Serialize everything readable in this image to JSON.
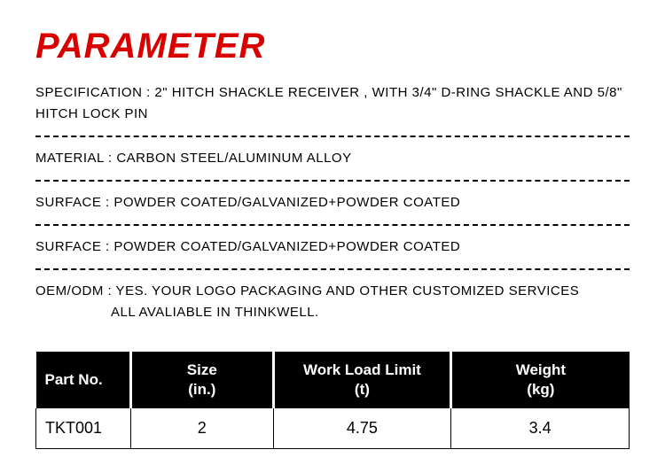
{
  "title": {
    "text": "PARAMETER",
    "color": "#d90000",
    "fontsize": 40,
    "fontweight": 900,
    "fontstyle": "italic"
  },
  "specs": {
    "items": [
      {
        "text": "SPECIFICATION :  2\"  HITCH SHACKLE RECEIVER ,   WITH 3/4\"  D-RING SHACKLE AND 5/8\"  HITCH LOCK PIN"
      },
      {
        "text": "MATERIAL : CARBON STEEL/ALUMINUM ALLOY"
      },
      {
        "text": "SURFACE : POWDER COATED/GALVANIZED+POWDER COATED"
      },
      {
        "text": "SURFACE : POWDER COATED/GALVANIZED+POWDER COATED"
      },
      {
        "text": "OEM/ODM : YES. YOUR LOGO PACKAGING AND OTHER CUSTOMIZED SERVICES",
        "continuation": "ALL  AVALIABLE IN THINKWELL."
      }
    ],
    "text_color": "#000000",
    "fontsize": 15,
    "border_color": "#000000",
    "border_style": "dashed"
  },
  "table": {
    "type": "table",
    "header_bg": "#000000",
    "header_fg": "#ffffff",
    "header_fontsize": 17,
    "cell_fontsize": 18,
    "border_color": "#000000",
    "columns": [
      {
        "line1": "Part No.",
        "line2": "",
        "width": "16%"
      },
      {
        "line1": "Size",
        "line2": "(in.)",
        "width": "24%"
      },
      {
        "line1": "Work Load Limit",
        "line2": "(t)",
        "width": "30%"
      },
      {
        "line1": "Weight",
        "line2": "(kg)",
        "width": "30%"
      }
    ],
    "rows": [
      {
        "part_no": "TKT001",
        "size": "2",
        "wll": "4.75",
        "weight": "3.4"
      }
    ]
  },
  "background_color": "#ffffff"
}
